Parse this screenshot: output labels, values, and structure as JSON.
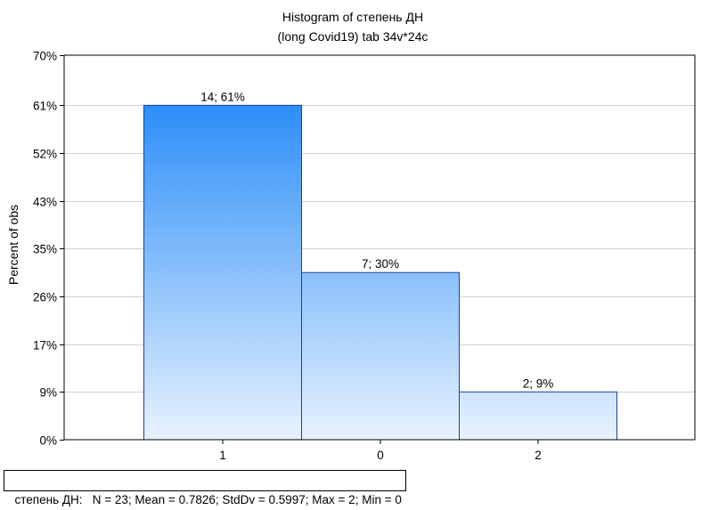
{
  "chart_data": {
    "type": "bar",
    "title": "Histogram of степень ДН",
    "subtitle": "(long Covid19) tab 34v*24c",
    "ylabel": "Percent of obs",
    "xlabel": "",
    "categories": [
      "1",
      "0",
      "2"
    ],
    "series": [
      {
        "values": [
          60.87,
          30.43,
          8.7
        ],
        "counts": [
          14,
          7,
          2
        ]
      }
    ],
    "data_labels": [
      "14; 61%",
      "7; 30%",
      "2; 9%"
    ],
    "ylim": [
      0,
      70
    ],
    "yticks": [
      0,
      8.7,
      17.4,
      26.1,
      34.8,
      43.5,
      52.2,
      60.9,
      70
    ],
    "ytick_labels": [
      "0%",
      "9%",
      "17%",
      "26%",
      "35%",
      "43%",
      "52%",
      "61%",
      "70%"
    ],
    "grid": true,
    "colors": {
      "bar_top": "#2b8ef8",
      "bar_bottom": "#e8f2fe",
      "bar_stroke": "#1a3fa0"
    }
  },
  "footer": {
    "stats": "степень ДН:   N = 23; Mean = 0.7826; StdDv = 0.5997; Max = 2; Min = 0"
  }
}
